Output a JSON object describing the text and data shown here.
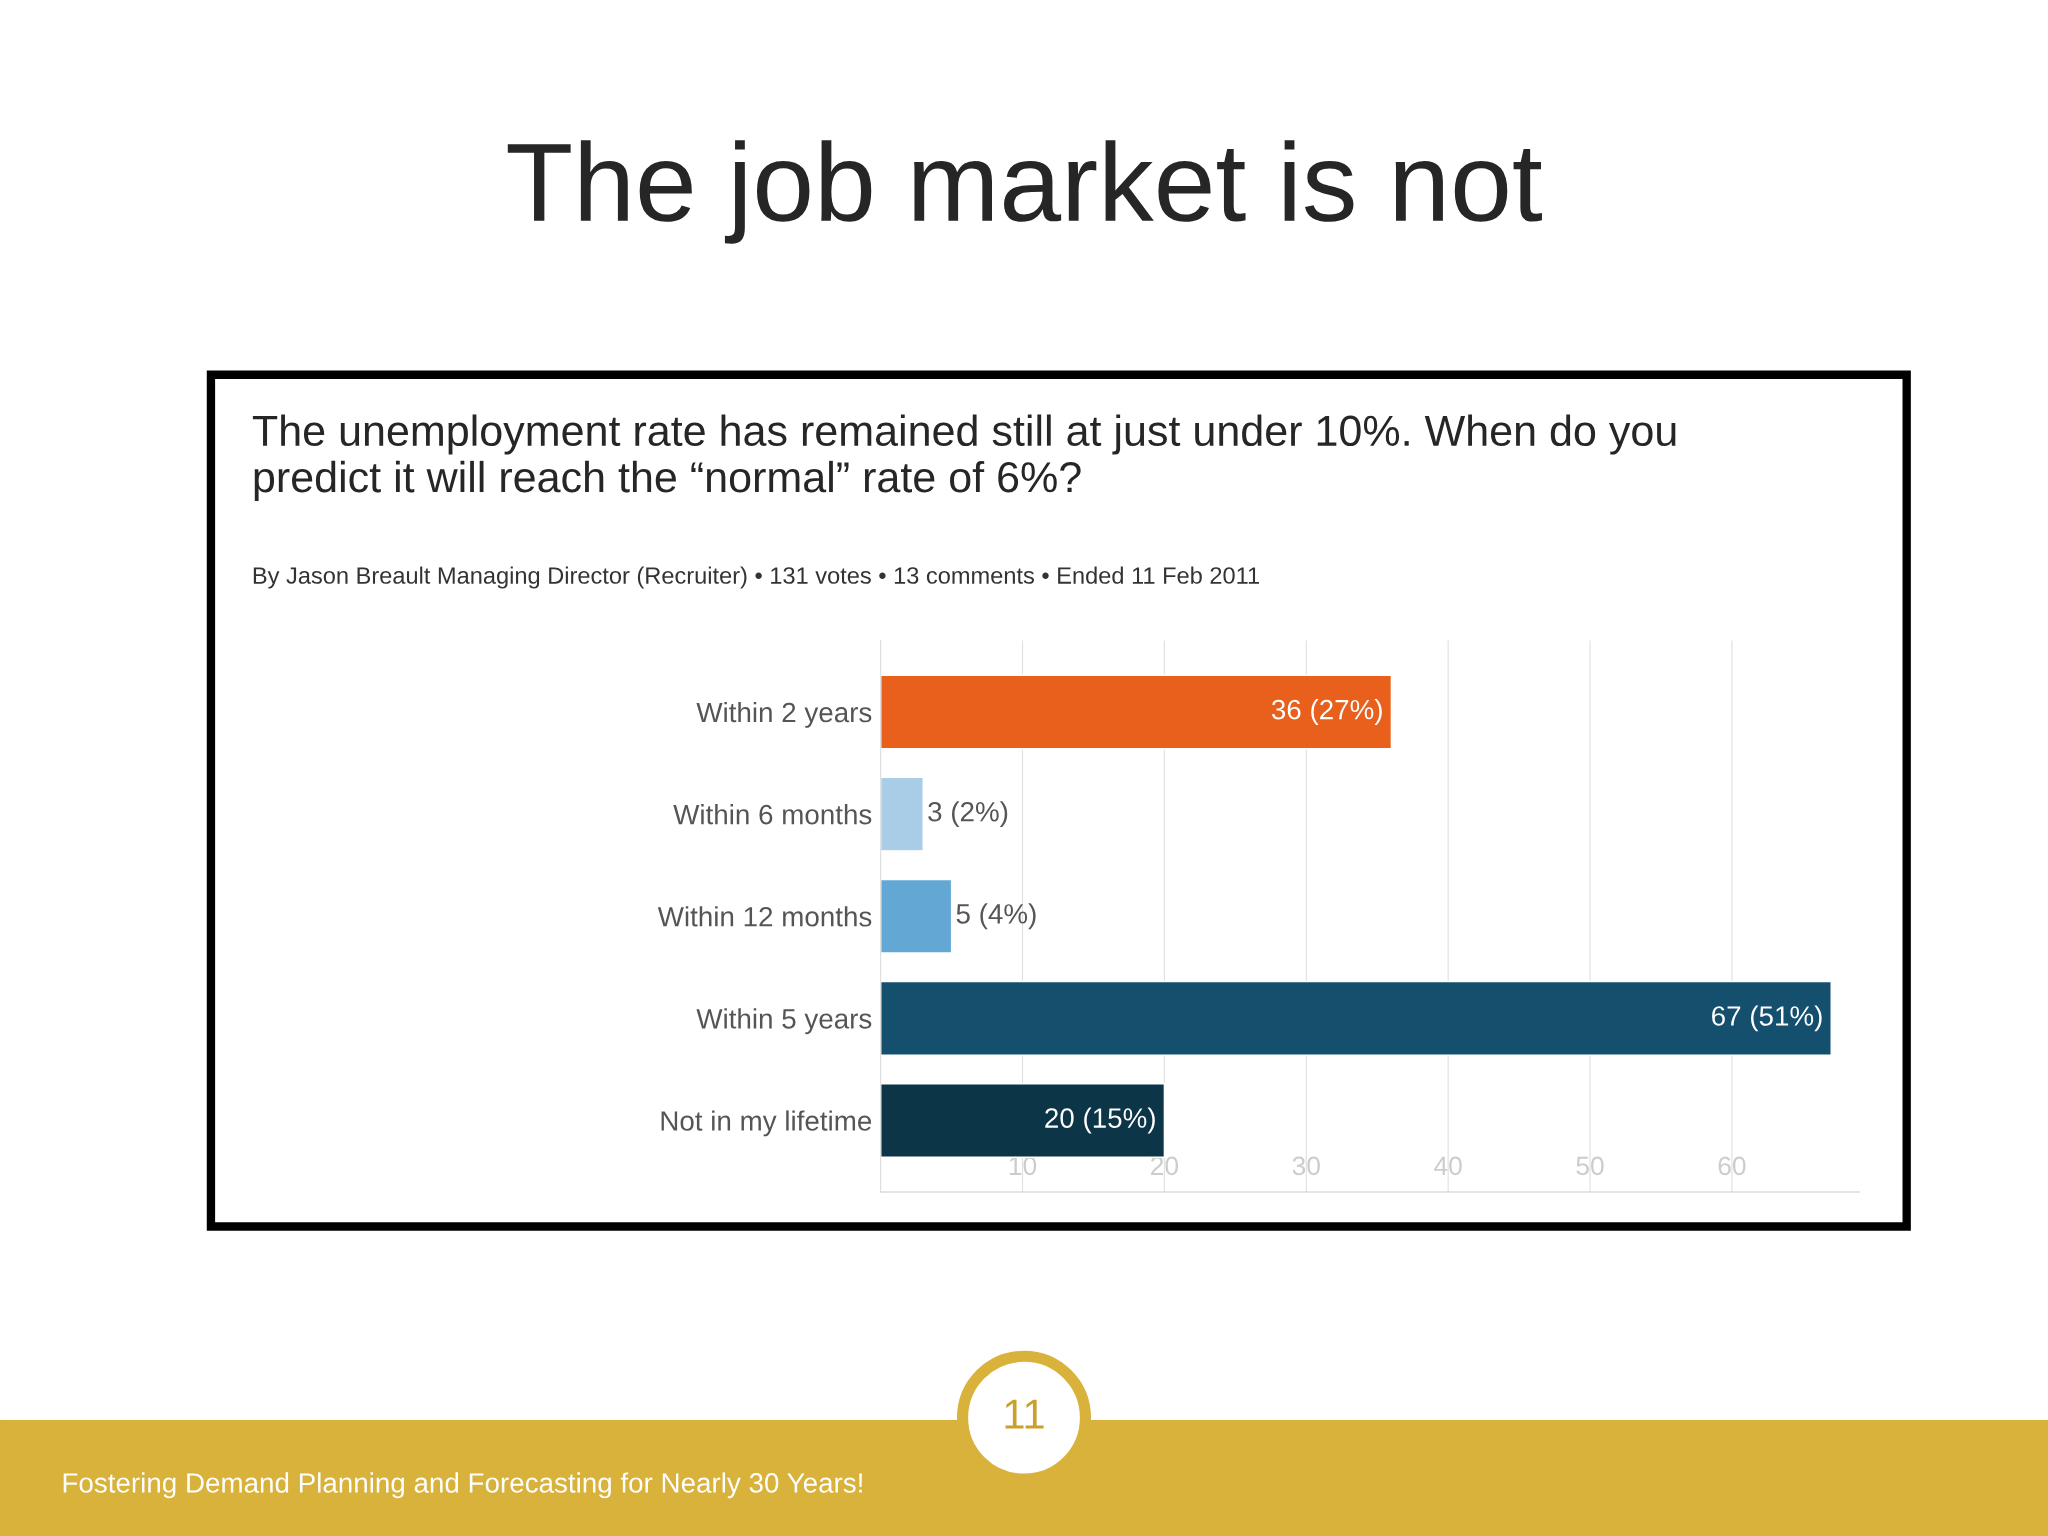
{
  "chart_data": {
    "type": "bar",
    "orientation": "horizontal",
    "title": "The job market is not",
    "subtitle": "The unemployment rate has remained still at just under 10%. When do you predict it will reach the “normal” rate of 6%?",
    "annotations": [
      "By Jason Breault Managing Director (Recruiter) • 131 votes • 13 comments • Ended 11 Feb 2011",
      "11",
      "Fostering Demand Planning and Forecasting for Nearly 30 Years!"
    ],
    "categories": [
      "Within 2 years",
      "Within 6 months",
      "Within 12 months",
      "Within 5 years",
      "Not in my lifetime"
    ],
    "values": [
      36,
      3,
      5,
      67,
      20
    ],
    "colors": [
      "#e8601c",
      "#a9cde6",
      "#63a8d4",
      "#14506e",
      "#0d3548"
    ],
    "value_labels": [
      "36 (27%)",
      "3 (2%)",
      "5 (4%)",
      "67 (51%)",
      "20 (15%)"
    ],
    "xlim": [
      0,
      69
    ],
    "xticks": [
      10,
      20,
      30,
      40,
      50,
      60
    ],
    "grid": "x"
  }
}
